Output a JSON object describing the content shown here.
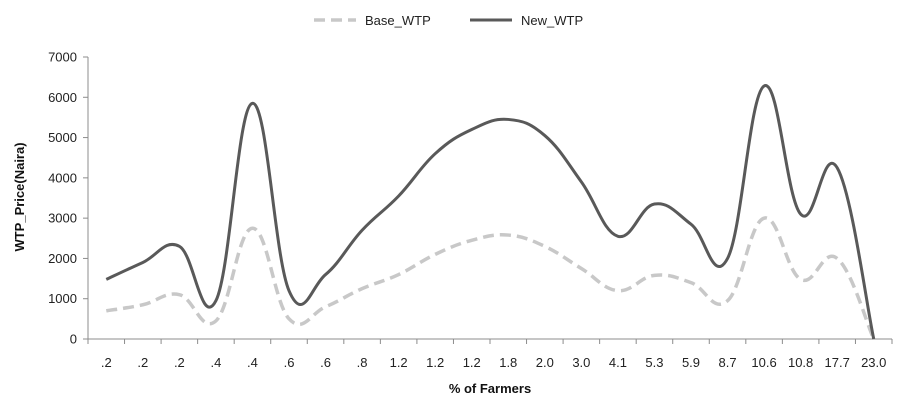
{
  "chart_data": {
    "type": "line",
    "xlabel": "% of Farmers",
    "ylabel": "WTP_Price(Naira)",
    "ylim": [
      0,
      7000
    ],
    "yticks": [
      0,
      1000,
      2000,
      3000,
      4000,
      5000,
      6000,
      7000
    ],
    "grid": false,
    "legend": "top-center",
    "categories": [
      ".2",
      ".2",
      ".2",
      ".4",
      ".4",
      ".6",
      ".6",
      ".8",
      "1.2",
      "1.2",
      "1.2",
      "1.8",
      "2.0",
      "3.0",
      "4.1",
      "5.3",
      "5.9",
      "8.7",
      "10.6",
      "10.8",
      "17.7",
      "23.0"
    ],
    "series": [
      {
        "name": "Base_WTP",
        "style": "dashed",
        "color": "#c8c8c8",
        "values": [
          700,
          850,
          1100,
          450,
          2750,
          500,
          800,
          1250,
          1600,
          2100,
          2450,
          2580,
          2300,
          1750,
          1200,
          1580,
          1400,
          950,
          3000,
          1480,
          2000,
          0
        ]
      },
      {
        "name": "New_WTP",
        "style": "solid",
        "color": "#595959",
        "values": [
          1480,
          1900,
          2300,
          950,
          5850,
          1200,
          1600,
          2700,
          3550,
          4600,
          5200,
          5450,
          5050,
          3900,
          2550,
          3350,
          2850,
          2000,
          6280,
          3100,
          4250,
          0
        ]
      }
    ]
  }
}
